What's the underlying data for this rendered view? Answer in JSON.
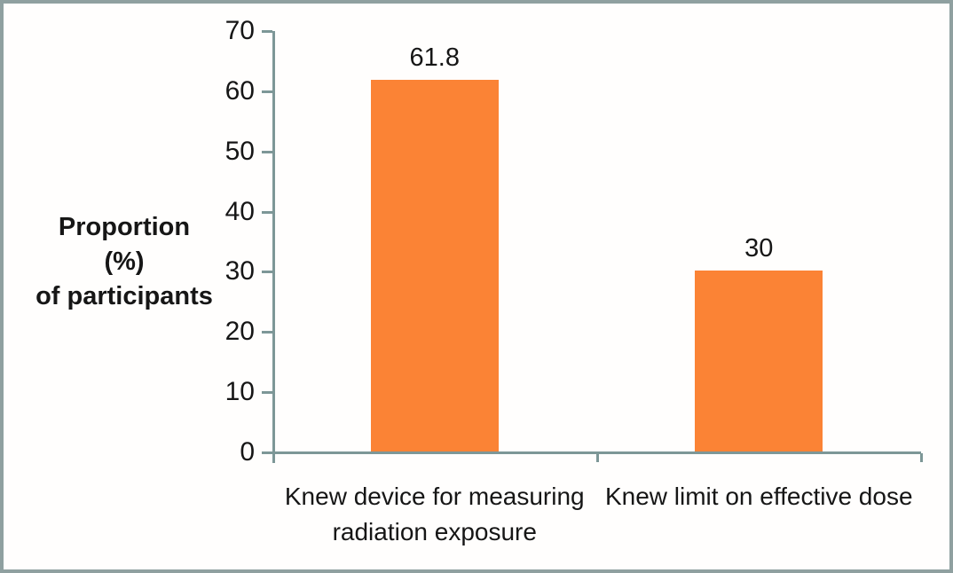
{
  "chart_data": {
    "type": "bar",
    "categories": [
      "Knew device for measuring radiation exposure",
      "Knew limit on effective dose"
    ],
    "values": [
      61.8,
      30
    ],
    "data_labels": [
      "61.8",
      "30"
    ],
    "title": "",
    "xlabel": "",
    "ylabel": "Proportion (%) of participants",
    "ylabel_lines": [
      "Proportion (%)",
      "of participants"
    ],
    "ylim": [
      0,
      70
    ],
    "yticks": [
      0,
      10,
      20,
      30,
      40,
      50,
      60,
      70
    ],
    "grid": false,
    "legend_position": "none",
    "bar_color": "#fb8335",
    "axis_color": "#7d9797",
    "frame_border_color": "#8fa0a0",
    "text_color": "#161616"
  }
}
